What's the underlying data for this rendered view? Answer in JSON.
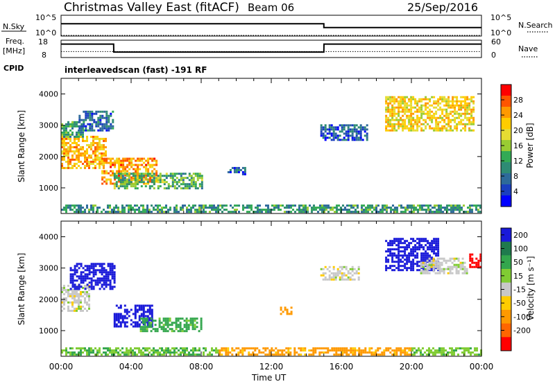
{
  "header": {
    "title": "Christmas Valley East (fitACF)",
    "beam": "Beam 06",
    "date": "25/Sep/2016"
  },
  "params": {
    "nsky_label": "N.Sky",
    "nsky_ticks": [
      "10^5",
      "10^0"
    ],
    "nsearch_label": "N.Search",
    "nsearch_ticks": [
      "10^5",
      "10^0"
    ],
    "freq_label": "Freq.",
    "freq_unit": "[MHz]",
    "freq_ticks": [
      "18",
      "8"
    ],
    "nave_label": "Nave",
    "nave_ticks": [
      "60",
      "0"
    ],
    "cpid_label": "CPID",
    "cpid_value": "interleavedscan (fast) -191 RF"
  },
  "colorbars": {
    "power": {
      "label": "Power [dB]",
      "ticks": [
        "28",
        "24",
        "20",
        "16",
        "12",
        "8",
        "4"
      ],
      "colors": [
        "#ff0000",
        "#ff5500",
        "#ff9900",
        "#ffcc00",
        "#e6dc32",
        "#99cc33",
        "#33aa55",
        "#2e8b74",
        "#2d6a9a",
        "#1a3fbf",
        "#0000ff"
      ]
    },
    "velocity": {
      "label": "Velocity [m s⁻¹]",
      "ticks": [
        "200",
        "100",
        "50",
        "15",
        "-15",
        "-50",
        "-100",
        "-200"
      ],
      "colors": [
        "#1a1ad9",
        "#1f7a4d",
        "#33a64d",
        "#80cc33",
        "#c8c8c8",
        "#ffcc00",
        "#ff9900",
        "#ff6600",
        "#ff0000"
      ]
    }
  },
  "chart_data": [
    {
      "type": "line",
      "panel": "N.Sky / N.Search",
      "x": [
        0,
        0.5,
        1,
        1.5,
        2,
        2.5,
        3,
        3.5,
        4,
        6,
        8,
        10,
        12,
        14,
        15,
        16,
        18,
        20,
        22,
        24
      ],
      "series": [
        {
          "name": "N.Sky",
          "values": [
            1000,
            1000,
            1000,
            1000,
            1000,
            1000,
            1000,
            1000,
            1000,
            1000,
            1000,
            1000,
            1000,
            1000,
            100,
            100,
            100,
            100,
            100,
            100
          ]
        },
        {
          "name": "N.Search",
          "values": [
            1,
            1,
            1,
            1,
            1,
            1,
            1,
            1,
            1,
            1,
            1,
            1,
            1,
            1,
            1,
            1,
            1,
            1,
            1,
            1
          ]
        }
      ],
      "y_scale": "log"
    },
    {
      "type": "line",
      "panel": "Freq. / Nave",
      "x": [
        0,
        3,
        3.01,
        15,
        15.01,
        24
      ],
      "series": [
        {
          "name": "Freq.",
          "values": [
            16,
            16,
            11,
            11,
            16,
            16
          ]
        },
        {
          "name": "Nave",
          "values": [
            20,
            20,
            20,
            20,
            20,
            20
          ]
        }
      ],
      "ylim_freq": [
        8,
        18
      ],
      "ylim_nave": [
        0,
        60
      ]
    },
    {
      "type": "heatmap",
      "panel": "Power",
      "xlabel": "",
      "ylabel": "Slant Range [km]",
      "xlim": [
        0,
        24
      ],
      "ylim": [
        180,
        4500
      ],
      "x_ticks": [
        "00:00",
        "04:00",
        "08:00",
        "12:00",
        "16:00",
        "20:00",
        "00:00"
      ],
      "y_ticks": [
        "1000",
        "2000",
        "3000",
        "4000"
      ],
      "color_scale": "power",
      "regions": [
        {
          "t0": 0.0,
          "t1": 2.5,
          "r0": 1600,
          "r1": 2600,
          "value": 22
        },
        {
          "t0": 0.0,
          "t1": 1.2,
          "r0": 2600,
          "r1": 3100,
          "value": 10
        },
        {
          "t0": 2.3,
          "t1": 5.5,
          "r0": 1100,
          "r1": 1900,
          "value": 24
        },
        {
          "t0": 3.0,
          "t1": 8.0,
          "r0": 950,
          "r1": 1450,
          "value": 12
        },
        {
          "t0": 1.0,
          "t1": 3.0,
          "r0": 2800,
          "r1": 3400,
          "value": 6
        },
        {
          "t0": 9.5,
          "t1": 10.5,
          "r0": 1400,
          "r1": 1600,
          "value": 4
        },
        {
          "t0": 14.8,
          "t1": 17.5,
          "r0": 2500,
          "r1": 3000,
          "value": 5
        },
        {
          "t0": 18.5,
          "t1": 23.6,
          "r0": 2800,
          "r1": 3900,
          "value": 20
        },
        {
          "t0": 0.0,
          "t1": 24.0,
          "r0": 200,
          "r1": 450,
          "value": 10
        }
      ]
    },
    {
      "type": "heatmap",
      "panel": "Velocity",
      "xlabel": "Time UT",
      "ylabel": "Slant Range [km]",
      "xlim": [
        0,
        24
      ],
      "ylim": [
        180,
        4500
      ],
      "x_ticks": [
        "00:00",
        "04:00",
        "08:00",
        "12:00",
        "16:00",
        "20:00",
        "00:00"
      ],
      "y_ticks": [
        "1000",
        "2000",
        "3000",
        "4000"
      ],
      "color_scale": "velocity",
      "regions": [
        {
          "t0": 0.0,
          "t1": 1.6,
          "r0": 1600,
          "r1": 2400,
          "value": 0
        },
        {
          "t0": 0.5,
          "t1": 3.0,
          "r0": 2300,
          "r1": 3100,
          "value": 200
        },
        {
          "t0": 3.0,
          "t1": 5.2,
          "r0": 1100,
          "r1": 1800,
          "value": 220
        },
        {
          "t0": 4.5,
          "t1": 8.0,
          "r0": 950,
          "r1": 1400,
          "value": 40
        },
        {
          "t0": 12.5,
          "t1": 13.2,
          "r0": 1500,
          "r1": 1700,
          "value": -60
        },
        {
          "t0": 14.8,
          "t1": 17.0,
          "r0": 2600,
          "r1": 3000,
          "value": 0
        },
        {
          "t0": 18.5,
          "t1": 21.5,
          "r0": 2900,
          "r1": 3900,
          "value": 200
        },
        {
          "t0": 20.5,
          "t1": 23.2,
          "r0": 2800,
          "r1": 3300,
          "value": 0
        },
        {
          "t0": 23.3,
          "t1": 24.0,
          "r0": 3000,
          "r1": 3400,
          "value": -200
        },
        {
          "t0": 0.0,
          "t1": 9.0,
          "r0": 200,
          "r1": 450,
          "value": 30
        },
        {
          "t0": 9.0,
          "t1": 20.0,
          "r0": 200,
          "r1": 450,
          "value": -40
        },
        {
          "t0": 20.0,
          "t1": 24.0,
          "r0": 200,
          "r1": 450,
          "value": 25
        }
      ]
    }
  ],
  "footer": {
    "xlabel": "Time UT"
  }
}
